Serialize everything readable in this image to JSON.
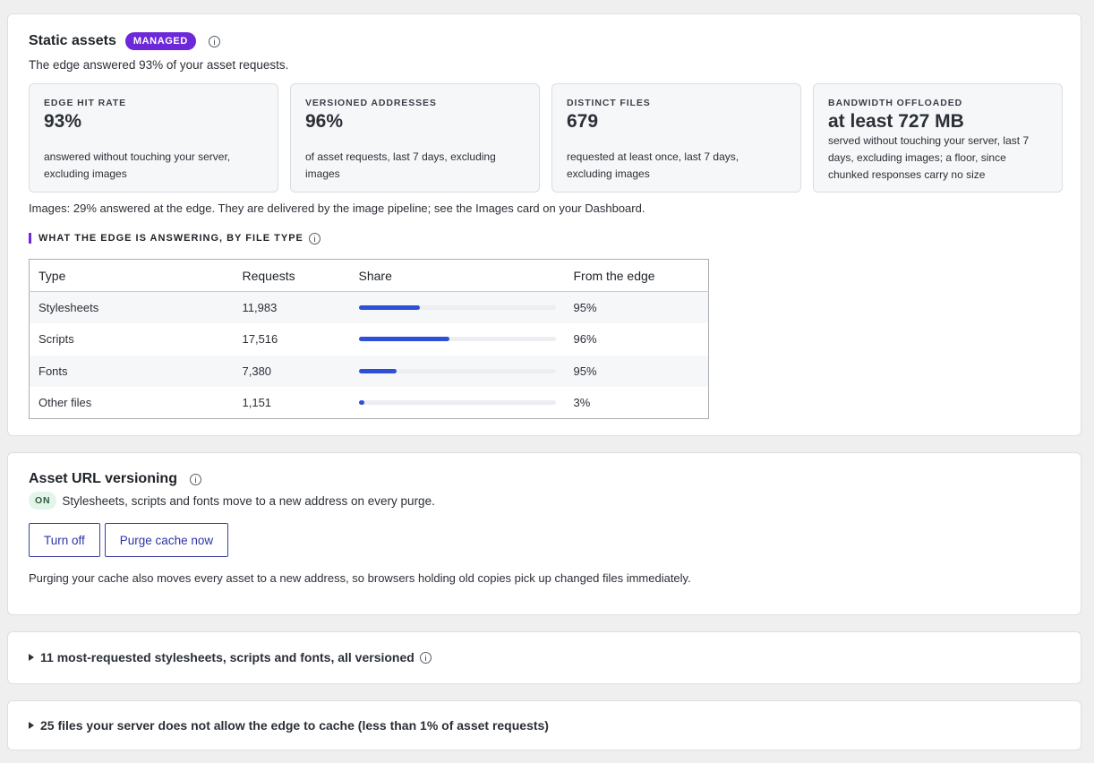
{
  "static_assets": {
    "title": "Static assets",
    "badge": "MANAGED",
    "subtitle": "The edge answered 93% of your asset requests.",
    "stats": [
      {
        "label": "EDGE HIT RATE",
        "value": "93%",
        "desc": "answered without touching your server, excluding images"
      },
      {
        "label": "VERSIONED ADDRESSES",
        "value": "96%",
        "desc": "of asset requests, last 7 days, excluding images"
      },
      {
        "label": "DISTINCT FILES",
        "value": "679",
        "desc": "requested at least once, last 7 days, excluding images"
      },
      {
        "label": "BANDWIDTH OFFLOADED",
        "value": "at least 727 MB",
        "desc": "served without touching your server, last 7 days, excluding images; a floor, since chunked responses carry no size"
      }
    ],
    "images_note": "Images: 29% answered at the edge. They are delivered by the image pipeline; see the Images card on your Dashboard.",
    "section_heading": "WHAT THE EDGE IS ANSWERING, BY FILE TYPE",
    "table": {
      "headers": [
        "Type",
        "Requests",
        "Share",
        "From the edge"
      ],
      "rows": [
        {
          "type": "Stylesheets",
          "requests": "11,983",
          "share": 0.31,
          "edge": "95%"
        },
        {
          "type": "Scripts",
          "requests": "17,516",
          "share": 0.46,
          "edge": "96%"
        },
        {
          "type": "Fonts",
          "requests": "7,380",
          "share": 0.195,
          "edge": "95%"
        },
        {
          "type": "Other files",
          "requests": "1,151",
          "share": 0.03,
          "edge": "3%"
        }
      ]
    }
  },
  "versioning": {
    "title": "Asset URL versioning",
    "status_badge": "ON",
    "status_text": "Stylesheets, scripts and fonts move to a new address on every purge.",
    "turn_off_label": "Turn off",
    "purge_label": "Purge cache now",
    "note": "Purging your cache also moves every asset to a new address, so browsers holding old copies pick up changed files immediately."
  },
  "top_files": {
    "label": "11 most-requested stylesheets, scripts and fonts, all versioned"
  },
  "uncached": {
    "label": "25 files your server does not allow the edge to cache (less than 1% of asset requests)"
  },
  "colors": {
    "accent": "#6d28d9",
    "bar": "#2f4fd6",
    "on_badge_bg": "#e3f5e9"
  }
}
